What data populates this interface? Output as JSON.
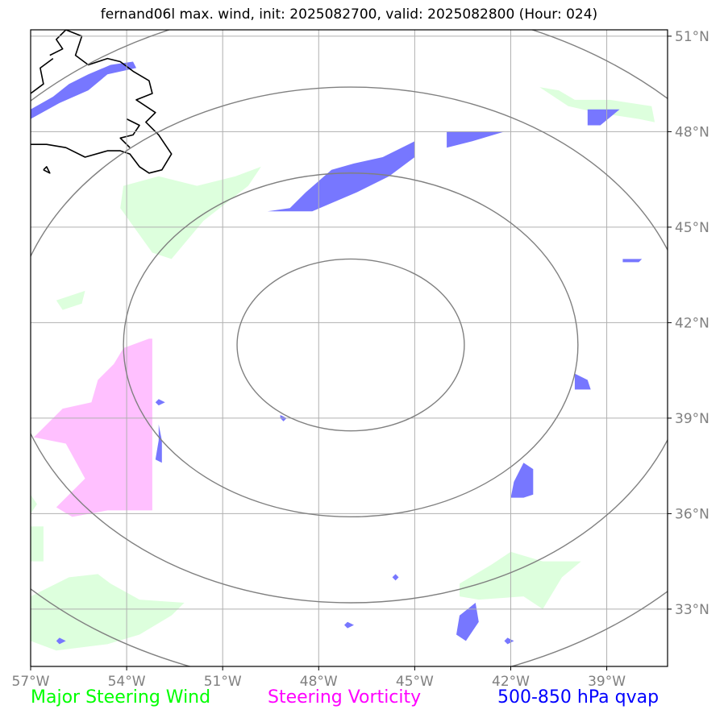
{
  "title": "fernand06l max. wind, init: 2025082700, valid: 2025082800 (Hour: 024)",
  "legend": [
    {
      "label": "Major Steering Wind",
      "color": "#00ff00"
    },
    {
      "label": "Steering Vorticity",
      "color": "#ff00ff"
    },
    {
      "label": "500-850 hPa qvap",
      "color": "#0000ff"
    }
  ],
  "colors": {
    "wind_fill": "#ddffdd",
    "vorticity_fill": "#ffc0ff",
    "qvap_fill": "#7777ff",
    "range_rings": "#808080",
    "grid": "#b0b0b0",
    "coast": "#000000"
  },
  "chart_data": {
    "type": "map",
    "xlim": [
      -57,
      -37.1
    ],
    "ylim": [
      31.2,
      51.2
    ],
    "x_ticks": [
      {
        "value": -57,
        "label": "57°W"
      },
      {
        "value": -54,
        "label": "54°W"
      },
      {
        "value": -51,
        "label": "51°W"
      },
      {
        "value": -48,
        "label": "48°W"
      },
      {
        "value": -45,
        "label": "45°W"
      },
      {
        "value": -42,
        "label": "42°W"
      },
      {
        "value": -39,
        "label": "39°W"
      }
    ],
    "y_ticks": [
      {
        "value": 51,
        "label": "51°N"
      },
      {
        "value": 48,
        "label": "48°N"
      },
      {
        "value": 45,
        "label": "45°N"
      },
      {
        "value": 42,
        "label": "42°N"
      },
      {
        "value": 39,
        "label": "39°N"
      },
      {
        "value": 36,
        "label": "36°N"
      },
      {
        "value": 33,
        "label": "33°N"
      }
    ],
    "storm_center": {
      "lon": -47.0,
      "lat": 41.3
    },
    "range_rings": [
      {
        "name": "ring-1",
        "rx_deg": 3.55,
        "ry_deg": 2.7
      },
      {
        "name": "ring-2",
        "rx_deg": 7.1,
        "ry_deg": 5.4
      },
      {
        "name": "ring-3",
        "rx_deg": 10.65,
        "ry_deg": 8.1
      },
      {
        "name": "ring-4",
        "rx_deg": 14.2,
        "ry_deg": 10.8
      }
    ],
    "steering_wind_regions": [
      {
        "name": "wind-region-central-north",
        "points": [
          [
            -54.1,
            46.3
          ],
          [
            -53.0,
            46.6
          ],
          [
            -51.8,
            46.3
          ],
          [
            -50.6,
            46.6
          ],
          [
            -49.8,
            46.9
          ],
          [
            -50.2,
            46.3
          ],
          [
            -51.6,
            45.2
          ],
          [
            -52.6,
            44.0
          ],
          [
            -53.2,
            44.2
          ],
          [
            -54.2,
            45.6
          ]
        ]
      },
      {
        "name": "wind-region-west",
        "points": [
          [
            -56.0,
            42.4
          ],
          [
            -55.4,
            42.6
          ],
          [
            -55.3,
            43.0
          ],
          [
            -56.2,
            42.7
          ]
        ]
      },
      {
        "name": "wind-region-northeast",
        "points": [
          [
            -41.1,
            49.4
          ],
          [
            -40.5,
            49.3
          ],
          [
            -40.0,
            49.0
          ],
          [
            -38.9,
            49.0
          ],
          [
            -37.6,
            48.8
          ],
          [
            -37.5,
            48.3
          ],
          [
            -38.0,
            48.4
          ],
          [
            -39.3,
            48.6
          ],
          [
            -40.2,
            48.8
          ]
        ]
      },
      {
        "name": "wind-region-north-strip",
        "points": [
          [
            -43.9,
            47.9
          ],
          [
            -43.5,
            48.0
          ],
          [
            -42.9,
            48.0
          ],
          [
            -43.0,
            47.9
          ]
        ]
      },
      {
        "name": "wind-region-southeast",
        "points": [
          [
            -43.6,
            33.8
          ],
          [
            -42.6,
            34.4
          ],
          [
            -42.0,
            34.8
          ],
          [
            -41.0,
            34.5
          ],
          [
            -39.8,
            34.5
          ],
          [
            -40.4,
            34.0
          ],
          [
            -41.0,
            33.0
          ],
          [
            -41.6,
            33.4
          ],
          [
            -43.0,
            33.3
          ],
          [
            -43.6,
            33.4
          ]
        ]
      },
      {
        "name": "wind-region-southwest",
        "points": [
          [
            -57.0,
            33.4
          ],
          [
            -55.8,
            34.0
          ],
          [
            -54.9,
            34.1
          ],
          [
            -54.5,
            33.8
          ],
          [
            -53.6,
            33.3
          ],
          [
            -52.2,
            33.2
          ],
          [
            -52.6,
            32.8
          ],
          [
            -53.6,
            32.2
          ],
          [
            -54.6,
            31.9
          ],
          [
            -56.2,
            31.7
          ],
          [
            -57.0,
            32.0
          ]
        ]
      },
      {
        "name": "wind-region-west-edge",
        "points": [
          [
            -57.0,
            35.6
          ],
          [
            -56.6,
            35.6
          ],
          [
            -56.6,
            34.5
          ],
          [
            -57.0,
            34.5
          ]
        ]
      },
      {
        "name": "wind-region-west-edge-top",
        "points": [
          [
            -57.0,
            36.6
          ],
          [
            -56.8,
            36.3
          ],
          [
            -57.0,
            36.0
          ]
        ]
      }
    ],
    "steering_vorticity_regions": [
      {
        "name": "vorticity-region-west",
        "points": [
          [
            -53.3,
            41.5
          ],
          [
            -53.2,
            41.5
          ],
          [
            -53.2,
            36.1
          ],
          [
            -54.6,
            36.1
          ],
          [
            -55.7,
            35.9
          ],
          [
            -56.2,
            36.2
          ],
          [
            -55.3,
            37.1
          ],
          [
            -55.9,
            38.2
          ],
          [
            -56.9,
            38.4
          ],
          [
            -56.0,
            39.3
          ],
          [
            -55.1,
            39.5
          ],
          [
            -54.9,
            40.2
          ],
          [
            -54.4,
            40.7
          ],
          [
            -54.1,
            41.2
          ]
        ]
      }
    ],
    "qvap_regions": [
      {
        "name": "qvap-region-newfoundland",
        "points": [
          [
            -57.0,
            48.7
          ],
          [
            -56.3,
            49.1
          ],
          [
            -55.8,
            49.5
          ],
          [
            -55.2,
            49.8
          ],
          [
            -54.5,
            50.1
          ],
          [
            -53.8,
            50.2
          ],
          [
            -53.7,
            50.0
          ],
          [
            -54.6,
            49.8
          ],
          [
            -55.2,
            49.3
          ],
          [
            -56.1,
            48.9
          ],
          [
            -57.0,
            48.4
          ]
        ]
      },
      {
        "name": "qvap-region-central-north",
        "points": [
          [
            -49.6,
            45.5
          ],
          [
            -48.9,
            45.6
          ],
          [
            -48.4,
            46.1
          ],
          [
            -47.6,
            46.8
          ],
          [
            -46.9,
            47.0
          ],
          [
            -46.0,
            47.2
          ],
          [
            -45.0,
            47.7
          ],
          [
            -45.0,
            47.2
          ],
          [
            -45.8,
            46.6
          ],
          [
            -46.8,
            46.1
          ],
          [
            -48.2,
            45.5
          ]
        ]
      },
      {
        "name": "qvap-region-north-patch",
        "points": [
          [
            -44.0,
            48.0
          ],
          [
            -43.0,
            48.0
          ],
          [
            -42.2,
            48.0
          ],
          [
            -43.2,
            47.7
          ],
          [
            -44.0,
            47.5
          ]
        ]
      },
      {
        "name": "qvap-region-northeast",
        "points": [
          [
            -39.6,
            48.7
          ],
          [
            -38.6,
            48.7
          ],
          [
            -39.2,
            48.2
          ],
          [
            -39.6,
            48.2
          ]
        ]
      },
      {
        "name": "qvap-region-east-dot",
        "points": [
          [
            -38.5,
            44.0
          ],
          [
            -37.9,
            44.0
          ],
          [
            -38.0,
            43.9
          ],
          [
            -38.5,
            43.9
          ]
        ]
      },
      {
        "name": "qvap-region-east-mid",
        "points": [
          [
            -40.0,
            40.4
          ],
          [
            -39.6,
            40.2
          ],
          [
            -39.5,
            39.9
          ],
          [
            -40.0,
            39.9
          ]
        ]
      },
      {
        "name": "qvap-region-east-south",
        "points": [
          [
            -41.6,
            37.6
          ],
          [
            -41.3,
            37.4
          ],
          [
            -41.3,
            36.6
          ],
          [
            -41.6,
            36.5
          ],
          [
            -42.0,
            36.5
          ],
          [
            -41.9,
            37.0
          ]
        ]
      },
      {
        "name": "qvap-region-southeast",
        "points": [
          [
            -43.1,
            33.2
          ],
          [
            -43.0,
            32.6
          ],
          [
            -43.4,
            32.0
          ],
          [
            -43.7,
            32.2
          ],
          [
            -43.6,
            32.8
          ]
        ]
      },
      {
        "name": "qvap-region-west-sliver",
        "points": [
          [
            -53.0,
            38.8
          ],
          [
            -52.9,
            38.3
          ],
          [
            -52.9,
            37.6
          ],
          [
            -53.1,
            37.7
          ],
          [
            -53.0,
            38.3
          ]
        ]
      },
      {
        "name": "qvap-region-dot-1",
        "points": [
          [
            -53.0,
            39.6
          ],
          [
            -52.8,
            39.5
          ],
          [
            -53.0,
            39.4
          ],
          [
            -53.1,
            39.5
          ]
        ]
      },
      {
        "name": "qvap-region-dot-2",
        "points": [
          [
            -49.2,
            39.1
          ],
          [
            -49.0,
            39.0
          ],
          [
            -49.1,
            38.9
          ],
          [
            -49.2,
            39.0
          ]
        ]
      },
      {
        "name": "qvap-region-dot-3",
        "points": [
          [
            -45.6,
            34.1
          ],
          [
            -45.5,
            34.0
          ],
          [
            -45.6,
            33.9
          ],
          [
            -45.7,
            34.0
          ]
        ]
      },
      {
        "name": "qvap-region-dot-4",
        "points": [
          [
            -47.1,
            32.6
          ],
          [
            -46.9,
            32.5
          ],
          [
            -47.1,
            32.4
          ],
          [
            -47.2,
            32.5
          ]
        ]
      },
      {
        "name": "qvap-region-dot-5",
        "points": [
          [
            -42.1,
            32.1
          ],
          [
            -41.9,
            32.0
          ],
          [
            -42.1,
            31.9
          ],
          [
            -42.2,
            32.0
          ]
        ]
      },
      {
        "name": "qvap-region-dot-6",
        "points": [
          [
            -56.1,
            32.1
          ],
          [
            -55.9,
            32.0
          ],
          [
            -56.1,
            31.9
          ],
          [
            -56.2,
            32.0
          ]
        ]
      }
    ],
    "coastline": [
      {
        "name": "coast-newfoundland",
        "points": [
          [
            -56.4,
            50.4
          ],
          [
            -56.0,
            50.6
          ],
          [
            -56.2,
            50.9
          ],
          [
            -55.9,
            51.2
          ],
          [
            -55.4,
            51.0
          ],
          [
            -55.6,
            50.4
          ],
          [
            -55.2,
            50.1
          ],
          [
            -54.6,
            50.3
          ],
          [
            -54.2,
            50.2
          ],
          [
            -53.8,
            49.9
          ],
          [
            -53.3,
            49.6
          ],
          [
            -53.2,
            49.2
          ],
          [
            -53.7,
            49.0
          ],
          [
            -53.1,
            48.6
          ],
          [
            -53.4,
            48.3
          ],
          [
            -53.0,
            47.9
          ],
          [
            -52.8,
            47.6
          ],
          [
            -52.6,
            47.3
          ],
          [
            -52.9,
            46.8
          ],
          [
            -53.3,
            46.7
          ],
          [
            -53.6,
            46.9
          ],
          [
            -53.9,
            47.3
          ],
          [
            -54.2,
            47.4
          ],
          [
            -54.6,
            47.4
          ],
          [
            -55.3,
            47.2
          ],
          [
            -55.9,
            47.5
          ],
          [
            -56.5,
            47.6
          ],
          [
            -57.0,
            47.6
          ]
        ]
      },
      {
        "name": "coast-cape-breton",
        "points": [
          [
            -57.0,
            49.2
          ],
          [
            -56.6,
            49.5
          ],
          [
            -56.7,
            50.0
          ],
          [
            -56.3,
            50.3
          ]
        ]
      },
      {
        "name": "coast-bay",
        "points": [
          [
            -54.0,
            48.4
          ],
          [
            -53.6,
            48.2
          ],
          [
            -53.8,
            47.9
          ],
          [
            -54.2,
            47.8
          ],
          [
            -53.9,
            47.5
          ]
        ]
      },
      {
        "name": "coast-islet",
        "points": [
          [
            -56.6,
            46.8
          ],
          [
            -56.4,
            46.7
          ],
          [
            -56.5,
            46.9
          ],
          [
            -56.6,
            46.8
          ]
        ]
      }
    ]
  }
}
